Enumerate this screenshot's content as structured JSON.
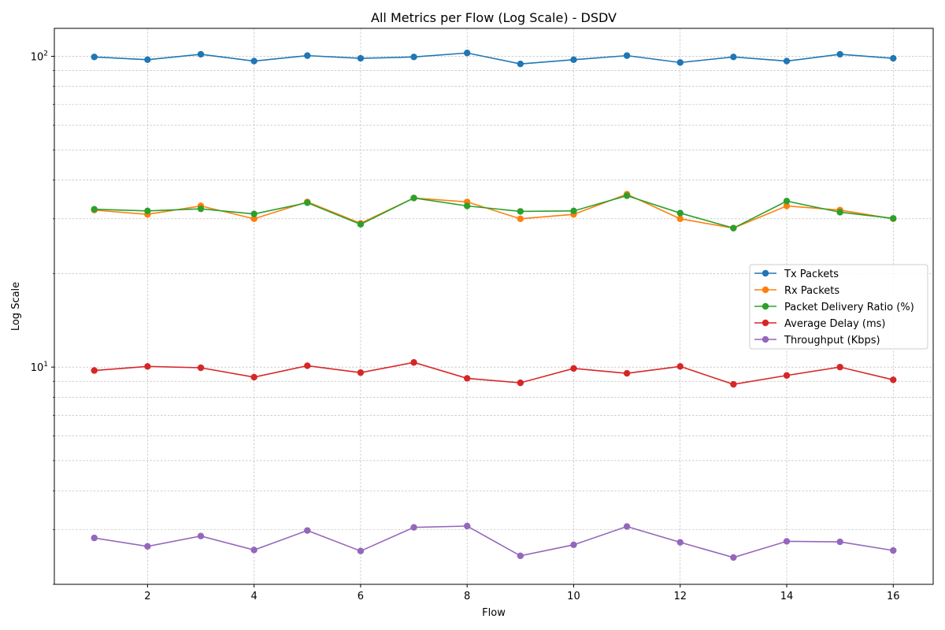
{
  "chart_data": {
    "type": "line",
    "title": "All Metrics per Flow (Log Scale) - DSDV",
    "xlabel": "Flow",
    "ylabel": "Log Scale",
    "y_scale": "log",
    "xlim": [
      0.25,
      16.75
    ],
    "ylim": [
      2.0,
      123
    ],
    "x_ticks": [
      2,
      4,
      6,
      8,
      10,
      12,
      14,
      16
    ],
    "y_ticks": [
      {
        "value": 10,
        "base": "10",
        "exp": "1"
      },
      {
        "value": 100,
        "base": "10",
        "exp": "2"
      }
    ],
    "grid": true,
    "legend_position": "center-right",
    "x": [
      1,
      2,
      3,
      4,
      5,
      6,
      7,
      8,
      9,
      10,
      11,
      12,
      13,
      14,
      15,
      16
    ],
    "series": [
      {
        "name": "Tx Packets",
        "color": "#1f77b4",
        "values": [
          99.5,
          97.5,
          101.5,
          96.5,
          100.5,
          98.5,
          99.5,
          102.5,
          94.5,
          97.5,
          100.5,
          95.5,
          99.5,
          96.5,
          101.5,
          98.5
        ]
      },
      {
        "name": "Rx Packets",
        "color": "#ff7f0e",
        "values": [
          32.0,
          31.0,
          33.0,
          30.0,
          34.0,
          29.0,
          35.0,
          34.0,
          30.0,
          31.0,
          36.0,
          30.0,
          28.0,
          33.0,
          32.0,
          30.0
        ]
      },
      {
        "name": "Packet Delivery Ratio (%)",
        "color": "#2ca02c",
        "values": [
          32.2,
          31.8,
          32.3,
          31.1,
          33.8,
          28.8,
          35.0,
          33.0,
          31.7,
          31.8,
          35.6,
          31.3,
          28.0,
          34.2,
          31.5,
          30.1
        ]
      },
      {
        "name": "Average Delay (ms)",
        "color": "#d62728",
        "values": [
          9.75,
          10.05,
          9.95,
          9.28,
          10.1,
          9.6,
          10.35,
          9.2,
          8.9,
          9.9,
          9.55,
          10.05,
          8.8,
          9.4,
          10.0,
          9.1
        ]
      },
      {
        "name": "Throughput (Kbps)",
        "color": "#9467bd",
        "values": [
          2.82,
          2.65,
          2.86,
          2.58,
          2.98,
          2.56,
          3.05,
          3.08,
          2.47,
          2.68,
          3.07,
          2.73,
          2.44,
          2.75,
          2.74,
          2.57
        ]
      }
    ]
  }
}
